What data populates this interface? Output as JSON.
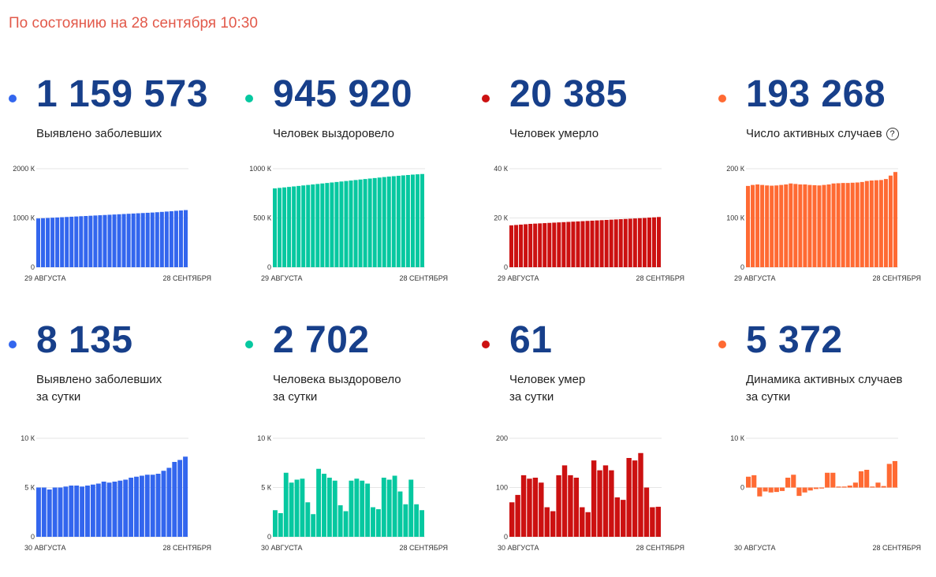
{
  "status_text": "По состоянию на 28 сентября 10:30",
  "cards": [
    {
      "id": "confirmed-total",
      "color": "#3366ee",
      "number": "1 159 573",
      "label_lines": [
        "Выявлено заболевших"
      ],
      "has_info": false
    },
    {
      "id": "recovered-total",
      "color": "#06c8a0",
      "number": "945 920",
      "label_lines": [
        "Человек выздоровело"
      ],
      "has_info": false
    },
    {
      "id": "deaths-total",
      "color": "#cc1111",
      "number": "20 385",
      "label_lines": [
        "Человек умерло"
      ],
      "has_info": false
    },
    {
      "id": "active-total",
      "color": "#ff6a33",
      "number": "193 268",
      "label_lines": [
        "Число активных случаев"
      ],
      "has_info": true,
      "info_glyph": "?"
    },
    {
      "id": "confirmed-daily",
      "color": "#3366ee",
      "number": "8 135",
      "label_lines": [
        "Выявлено заболевших",
        "за сутки"
      ],
      "has_info": false
    },
    {
      "id": "recovered-daily",
      "color": "#06c8a0",
      "number": "2 702",
      "label_lines": [
        "Человека выздоровело",
        "за сутки"
      ],
      "has_info": false
    },
    {
      "id": "deaths-daily",
      "color": "#cc1111",
      "number": "61",
      "label_lines": [
        "Человек умер",
        "за сутки"
      ],
      "has_info": false
    },
    {
      "id": "active-daily",
      "color": "#ff6a33",
      "number": "5 372",
      "label_lines": [
        "Динамика активных случаев",
        "за сутки"
      ],
      "has_info": false
    }
  ],
  "chart_data": [
    {
      "type": "bar",
      "series_color": "#3366ee",
      "ylim": [
        0,
        2000000
      ],
      "yticks": [
        {
          "v": 0,
          "label": "0"
        },
        {
          "v": 1000000,
          "label": "1000 К"
        },
        {
          "v": 2000000,
          "label": "2000 К"
        }
      ],
      "x_start_label": "29 АВГУСТА",
      "x_end_label": "28 СЕНТЯБРЯ",
      "values": [
        990000,
        995000,
        1000000,
        1005000,
        1010000,
        1015000,
        1020000,
        1025000,
        1030000,
        1035000,
        1040000,
        1045000,
        1050000,
        1055000,
        1060000,
        1065000,
        1070000,
        1075000,
        1080000,
        1085000,
        1090000,
        1095000,
        1100000,
        1105000,
        1110000,
        1116000,
        1123000,
        1130000,
        1137000,
        1145000,
        1152000,
        1159573
      ]
    },
    {
      "type": "bar",
      "series_color": "#06c8a0",
      "ylim": [
        0,
        1000000
      ],
      "yticks": [
        {
          "v": 0,
          "label": "0"
        },
        {
          "v": 500000,
          "label": "500 К"
        },
        {
          "v": 1000000,
          "label": "1000 К"
        }
      ],
      "x_start_label": "29 АВГУСТА",
      "x_end_label": "28 СЕНТЯБРЯ",
      "values": [
        800000,
        805000,
        810000,
        815000,
        820000,
        825000,
        830000,
        835000,
        840000,
        845000,
        850000,
        855000,
        860000,
        865000,
        870000,
        875000,
        880000,
        885000,
        890000,
        895000,
        900000,
        905000,
        910000,
        915000,
        920000,
        924000,
        928000,
        932000,
        936000,
        940000,
        943000,
        945920
      ]
    },
    {
      "type": "bar",
      "series_color": "#cc1111",
      "ylim": [
        0,
        40000
      ],
      "yticks": [
        {
          "v": 0,
          "label": "0"
        },
        {
          "v": 20000,
          "label": "20 К"
        },
        {
          "v": 40000,
          "label": "40 К"
        }
      ],
      "x_start_label": "29 АВГУСТА",
      "x_end_label": "28 СЕНТЯБРЯ",
      "values": [
        17000,
        17150,
        17300,
        17450,
        17600,
        17700,
        17800,
        17900,
        18000,
        18100,
        18200,
        18300,
        18400,
        18500,
        18600,
        18700,
        18800,
        18900,
        19000,
        19100,
        19200,
        19300,
        19400,
        19500,
        19600,
        19700,
        19800,
        19900,
        20000,
        20150,
        20250,
        20385
      ]
    },
    {
      "type": "bar",
      "series_color": "#ff6a33",
      "ylim": [
        0,
        200000
      ],
      "yticks": [
        {
          "v": 0,
          "label": "0"
        },
        {
          "v": 100000,
          "label": "100 К"
        },
        {
          "v": 200000,
          "label": "200 К"
        }
      ],
      "x_start_label": "29 АВГУСТА",
      "x_end_label": "28 СЕНТЯБРЯ",
      "values": [
        165000,
        167000,
        168000,
        167000,
        166000,
        165500,
        166000,
        167000,
        168000,
        170000,
        169000,
        168000,
        168000,
        167000,
        166500,
        166000,
        167000,
        168000,
        170000,
        170500,
        171000,
        171000,
        171500,
        172000,
        173000,
        175000,
        176000,
        176500,
        177000,
        179000,
        186000,
        193268
      ]
    },
    {
      "type": "bar",
      "series_color": "#3366ee",
      "ylim": [
        0,
        10000
      ],
      "yticks": [
        {
          "v": 0,
          "label": "0"
        },
        {
          "v": 5000,
          "label": "5 К"
        },
        {
          "v": 10000,
          "label": "10 К"
        }
      ],
      "x_start_label": "30 АВГУСТА",
      "x_end_label": "28 СЕНТЯБРЯ",
      "values": [
        5000,
        5000,
        4800,
        5000,
        5000,
        5100,
        5200,
        5200,
        5100,
        5200,
        5300,
        5400,
        5600,
        5500,
        5600,
        5700,
        5800,
        6000,
        6100,
        6200,
        6300,
        6300,
        6400,
        6700,
        7000,
        7600,
        7800,
        8135
      ]
    },
    {
      "type": "bar",
      "series_color": "#06c8a0",
      "ylim": [
        0,
        10000
      ],
      "yticks": [
        {
          "v": 0,
          "label": "0"
        },
        {
          "v": 5000,
          "label": "5 К"
        },
        {
          "v": 10000,
          "label": "10 К"
        }
      ],
      "x_start_label": "30 АВГУСТА",
      "x_end_label": "28 СЕНТЯБРЯ",
      "values": [
        2700,
        2400,
        6500,
        5500,
        5800,
        5900,
        3500,
        2300,
        6900,
        6400,
        6000,
        5700,
        3200,
        2600,
        5700,
        5900,
        5700,
        5400,
        3000,
        2800,
        6000,
        5800,
        6200,
        4600,
        3300,
        5800,
        3300,
        2702
      ]
    },
    {
      "type": "bar",
      "series_color": "#cc1111",
      "ylim": [
        0,
        200
      ],
      "yticks": [
        {
          "v": 0,
          "label": "0"
        },
        {
          "v": 100,
          "label": "100"
        },
        {
          "v": 200,
          "label": "200"
        }
      ],
      "x_start_label": "30 АВГУСТА",
      "x_end_label": "28 СЕНТЯБРЯ",
      "values": [
        70,
        85,
        125,
        118,
        120,
        110,
        60,
        52,
        125,
        145,
        125,
        120,
        60,
        50,
        155,
        135,
        145,
        135,
        80,
        75,
        160,
        155,
        170,
        100,
        60,
        61
      ]
    },
    {
      "type": "bar",
      "series_color": "#ff6a33",
      "ylim": [
        -10000,
        10000
      ],
      "yticks": [
        {
          "v": 0,
          "label": "0"
        },
        {
          "v": 10000,
          "label": "10 К"
        }
      ],
      "x_start_label": "30 АВГУСТА",
      "x_end_label": "28 СЕНТЯБРЯ",
      "values": [
        2200,
        2500,
        -1800,
        -800,
        -1000,
        -900,
        -700,
        2000,
        2600,
        -1700,
        -1000,
        -600,
        -300,
        -200,
        3000,
        3000,
        200,
        200,
        400,
        1000,
        3300,
        3600,
        200,
        1000,
        300,
        4800,
        5372
      ]
    }
  ]
}
